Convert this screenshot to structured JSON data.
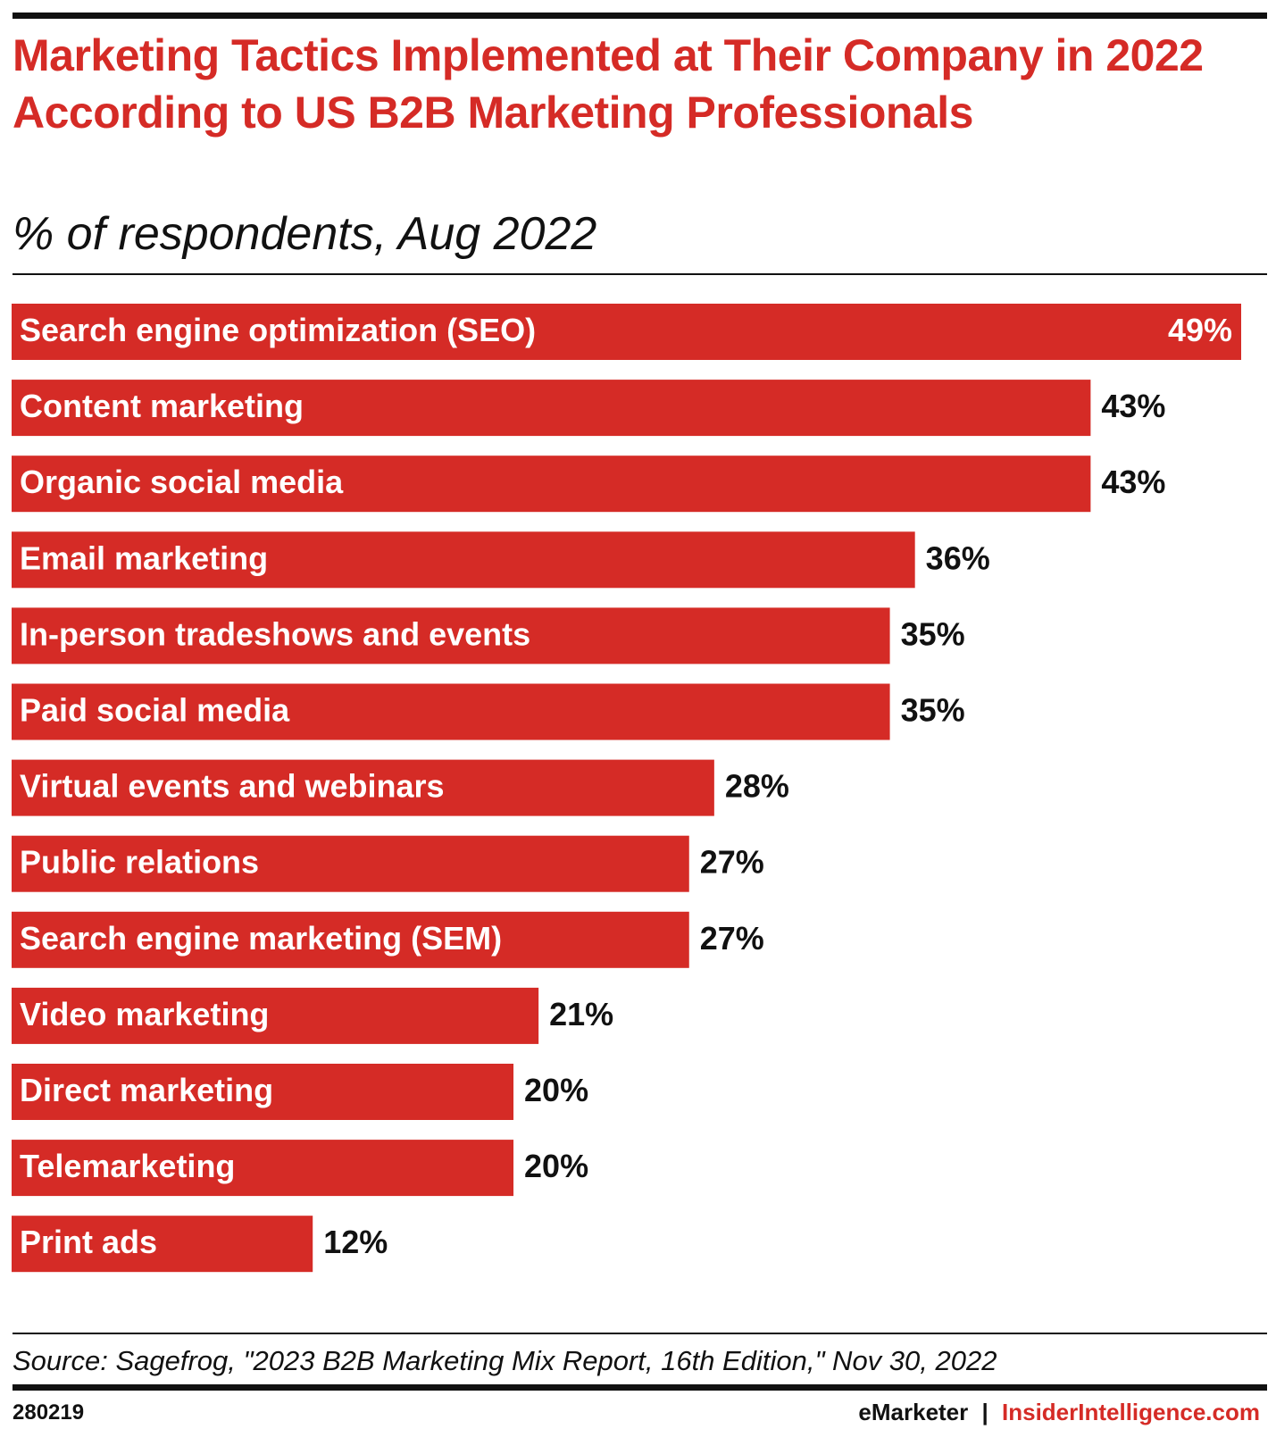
{
  "chart_data": {
    "type": "bar",
    "orientation": "horizontal",
    "title": "Marketing Tactics Implemented at Their Company in 2022 According to US B2B Marketing Professionals",
    "subtitle": "% of respondents, Aug 2022",
    "categories": [
      "Search engine optimization (SEO)",
      "Content marketing",
      "Organic social media",
      "Email marketing",
      "In-person tradeshows and events",
      "Paid social media",
      "Virtual events and webinars",
      "Public relations",
      "Search engine marketing (SEM)",
      "Video marketing",
      "Direct marketing",
      "Telemarketing",
      "Print ads"
    ],
    "values": [
      49,
      43,
      43,
      36,
      35,
      35,
      28,
      27,
      27,
      21,
      20,
      20,
      12
    ],
    "value_labels": [
      "49%",
      "43%",
      "43%",
      "36%",
      "35%",
      "35%",
      "28%",
      "27%",
      "27%",
      "21%",
      "20%",
      "20%",
      "12%"
    ],
    "color": "#d52b26"
  },
  "source": "Source: Sagefrog, \"2023 B2B Marketing Mix Report, 16th Edition,\" Nov 30, 2022",
  "chart_id": "280219",
  "brand": "eMarketer",
  "separator": "|",
  "website": "InsiderIntelligence.com"
}
